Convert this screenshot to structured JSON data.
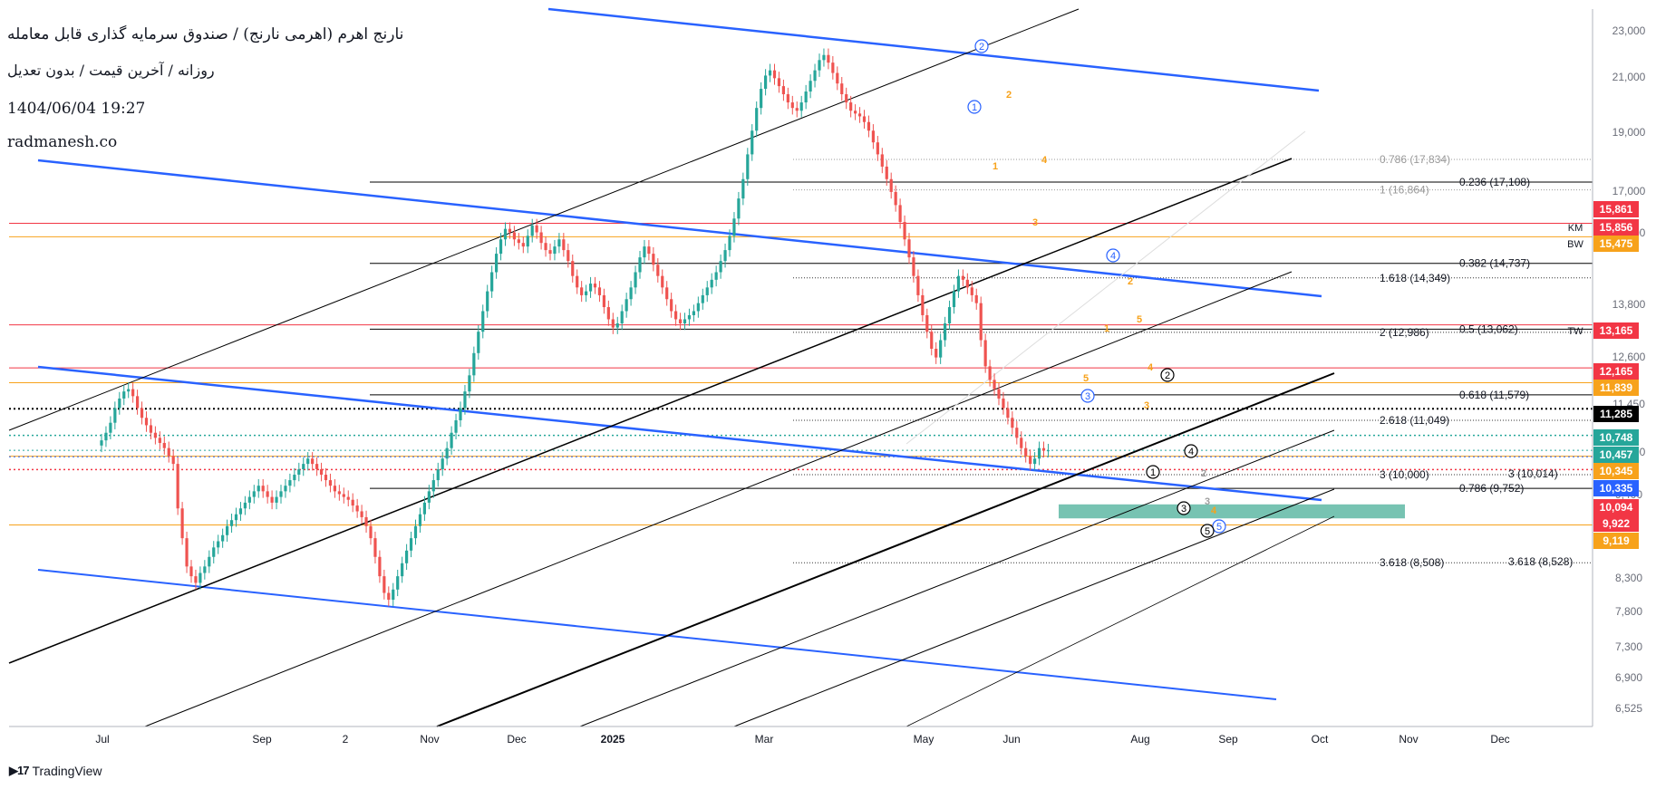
{
  "header": {
    "title": "نارنج اهرم (اهرمی نارنج) / صندوق سرمایه گذاری قابل معامله",
    "subtitle": "روزانه / آخرین قیمت / بدون تعدیل",
    "datetime": "1404/06/04 19:27",
    "website": "radmanesh.co"
  },
  "footer": {
    "brand": "TradingView"
  },
  "colors": {
    "up": "#26a69a",
    "down": "#ef5350",
    "blue": "#2962ff",
    "black": "#000000",
    "red_line": "#f23645",
    "orange_line": "#f7a21b",
    "teal_zone": "#5fb9a5"
  },
  "chart_data": {
    "type": "candlestick",
    "x_ticks": [
      "Jul",
      "Sep",
      "2",
      "Nov",
      "Dec",
      "2025",
      "Mar",
      "May",
      "Jun",
      "Aug",
      "Sep",
      "Oct",
      "Nov",
      "Dec"
    ],
    "y_ticks": [
      "23,000",
      "21,000",
      "19,000",
      "17,000",
      "15,000",
      "13,800",
      "12,600",
      "11,450",
      "10,400",
      "9,400",
      "8,300",
      "7,800",
      "7,300",
      "6,900",
      "6,525"
    ],
    "price_labels": [
      {
        "text": "15,861",
        "value": 15861,
        "color": "#f23645"
      },
      {
        "text": "15,856",
        "value": 15856,
        "color": "#f23645",
        "tag": "KM"
      },
      {
        "text": "15,475",
        "value": 15475,
        "color": "#f7a21b",
        "tag": "BW"
      },
      {
        "text": "13,165",
        "value": 13165,
        "color": "#f23645",
        "tag": "TW"
      },
      {
        "text": "12,165",
        "value": 12165,
        "color": "#f23645"
      },
      {
        "text": "11,839",
        "value": 11839,
        "color": "#f7a21b"
      },
      {
        "text": "11,285",
        "value": 11285,
        "color": "#000000"
      },
      {
        "text": "10,748",
        "value": 10748,
        "color": "#26a69a"
      },
      {
        "text": "10,457",
        "value": 10457,
        "color": "#26a69a"
      },
      {
        "text": "10,345",
        "value": 10345,
        "color": "#f7a21b"
      },
      {
        "text": "10,335",
        "value": 10335,
        "color": "#2962ff"
      },
      {
        "text": "10,094",
        "value": 10094,
        "color": "#f23645"
      },
      {
        "text": "9,922",
        "value": 9922,
        "color": "#f23645"
      },
      {
        "text": "9,119",
        "value": 9119,
        "color": "#f7a21b"
      }
    ],
    "fib_labels": [
      {
        "text": "0.786 (17,834)",
        "value": 17834,
        "muted": true
      },
      {
        "text": "0.236 (17,108)",
        "value": 17108
      },
      {
        "text": "1 (16,864)",
        "value": 16864,
        "muted": true
      },
      {
        "text": "0.382 (14,737)",
        "value": 14737
      },
      {
        "text": "1.618 (14,349)",
        "value": 14349
      },
      {
        "text": "0.5 (13,062)",
        "value": 13062
      },
      {
        "text": "2 (12,986)",
        "value": 12986
      },
      {
        "text": "0.618 (11,579)",
        "value": 11579
      },
      {
        "text": "2.618 (11,049)",
        "value": 11049
      },
      {
        "text": "3 (10,014)",
        "value": 10014
      },
      {
        "text": "3 (10,000)",
        "value": 10000
      },
      {
        "text": "0.786 (9,752)",
        "value": 9752
      },
      {
        "text": "3.618 (8,528)",
        "value": 8528
      },
      {
        "text": "3.618 (8,508)",
        "value": 8508
      }
    ],
    "wave_labels": [
      {
        "text": "2",
        "style": "blue-circle"
      },
      {
        "text": "1",
        "style": "blue-circle"
      },
      {
        "text": "4",
        "style": "blue-circle"
      },
      {
        "text": "3",
        "style": "blue-circle"
      },
      {
        "text": "5",
        "style": "blue-circle"
      },
      {
        "text": "2",
        "style": "black-circle"
      },
      {
        "text": "4",
        "style": "black-circle"
      },
      {
        "text": "1",
        "style": "black-circle"
      },
      {
        "text": "3",
        "style": "black-circle"
      },
      {
        "text": "5",
        "style": "black-circle"
      },
      {
        "text": "1",
        "style": "orange"
      },
      {
        "text": "2",
        "style": "orange"
      },
      {
        "text": "3",
        "style": "orange"
      },
      {
        "text": "4",
        "style": "orange"
      },
      {
        "text": "5",
        "style": "orange"
      },
      {
        "text": "1",
        "style": "orange"
      },
      {
        "text": "2",
        "style": "orange"
      },
      {
        "text": "3",
        "style": "orange"
      },
      {
        "text": "4",
        "style": "orange"
      },
      {
        "text": "5",
        "style": "orange"
      },
      {
        "text": "2",
        "style": "grey"
      },
      {
        "text": "3",
        "style": "grey"
      },
      {
        "text": "4",
        "style": "orange"
      }
    ],
    "candles": {
      "o": [
        10550,
        10650,
        10800,
        11000,
        11300,
        11500,
        11650,
        11700,
        11550,
        11300,
        11100,
        10950,
        10800,
        10700,
        10600,
        10500,
        10350,
        10200,
        9400,
        8900,
        8450,
        8300,
        8200,
        8350,
        8450,
        8600,
        8750,
        8850,
        8950,
        9100,
        9200,
        9300,
        9400,
        9500,
        9600,
        9700,
        9800,
        9700,
        9600,
        9500,
        9600,
        9700,
        9800,
        9900,
        10000,
        10100,
        10200,
        10300,
        10200,
        10100,
        10000,
        9900,
        9800,
        9700,
        9650,
        9600,
        9550,
        9450,
        9350,
        9250,
        9100,
        8900,
        8600,
        8300,
        8050,
        7950,
        8100,
        8300,
        8500,
        8700,
        8900,
        9100,
        9300,
        9500,
        9700,
        9900,
        10100,
        10300,
        10500,
        10800,
        11050,
        11300,
        11650,
        12000,
        12500,
        13000,
        13500,
        14000,
        14500,
        15000,
        15400,
        15700,
        15600,
        15400,
        15300,
        15200,
        15500,
        15800,
        15600,
        15300,
        15100,
        15000,
        15200,
        15400,
        15100,
        14800,
        14400,
        14100,
        13900,
        14000,
        14200,
        14100,
        13900,
        13600,
        13300,
        13100,
        13200,
        13500,
        13800,
        14100,
        14500,
        14900,
        15200,
        15000,
        14700,
        14400,
        14100,
        13800,
        13500,
        13300,
        13200,
        13300,
        13400,
        13500,
        13700,
        13900,
        14100,
        14300,
        14500,
        14800,
        15100,
        15500,
        16000,
        16600,
        17200,
        18000,
        18800,
        19600,
        20300,
        20800,
        21000,
        20700,
        20400,
        20100,
        19800,
        19600,
        19500,
        19800,
        20200,
        20600,
        21000,
        21400,
        21600,
        21300,
        20900,
        20500,
        20100,
        19800,
        19500,
        19400,
        19300,
        19100,
        18800,
        18400,
        18000,
        17600,
        17200,
        16800,
        16400,
        15900,
        15400,
        14900,
        14400,
        13900,
        13400,
        13000,
        12600,
        12400,
        12800,
        13200,
        13600,
        14000,
        14400,
        14300,
        14100,
        13900,
        13700,
        12800,
        12200,
        11900,
        11700,
        11500,
        11300,
        11100,
        10900,
        10700,
        10500,
        10350,
        10200,
        10300,
        10500,
        10450
      ],
      "c": [
        10650,
        10800,
        11000,
        11300,
        11500,
        11650,
        11700,
        11550,
        11300,
        11100,
        10950,
        10800,
        10700,
        10600,
        10500,
        10350,
        10200,
        9400,
        8900,
        8450,
        8300,
        8200,
        8350,
        8450,
        8600,
        8750,
        8850,
        8950,
        9100,
        9200,
        9300,
        9400,
        9500,
        9600,
        9700,
        9800,
        9700,
        9600,
        9500,
        9600,
        9700,
        9800,
        9900,
        10000,
        10100,
        10200,
        10300,
        10200,
        10100,
        10000,
        9900,
        9800,
        9700,
        9650,
        9600,
        9550,
        9450,
        9350,
        9250,
        9100,
        8900,
        8600,
        8300,
        8050,
        7950,
        8100,
        8300,
        8500,
        8700,
        8900,
        9100,
        9300,
        9500,
        9700,
        9900,
        10100,
        10300,
        10500,
        10800,
        11050,
        11300,
        11650,
        12000,
        12500,
        13000,
        13500,
        14000,
        14500,
        15000,
        15400,
        15700,
        15600,
        15400,
        15300,
        15200,
        15500,
        15800,
        15600,
        15300,
        15100,
        15000,
        15200,
        15400,
        15100,
        14800,
        14400,
        14100,
        13900,
        14000,
        14200,
        14100,
        13900,
        13600,
        13300,
        13100,
        13200,
        13500,
        13800,
        14100,
        14500,
        14900,
        15200,
        15000,
        14700,
        14400,
        14100,
        13800,
        13500,
        13300,
        13200,
        13300,
        13400,
        13500,
        13700,
        13900,
        14100,
        14300,
        14500,
        14800,
        15100,
        15500,
        16000,
        16600,
        17200,
        18000,
        18800,
        19600,
        20300,
        20800,
        21000,
        20700,
        20400,
        20100,
        19800,
        19600,
        19500,
        19800,
        20200,
        20600,
        21000,
        21400,
        21600,
        21300,
        20900,
        20500,
        20100,
        19800,
        19500,
        19400,
        19300,
        19100,
        18800,
        18400,
        18000,
        17600,
        17200,
        16800,
        16400,
        15900,
        15400,
        14900,
        14400,
        13900,
        13400,
        13000,
        12600,
        12400,
        12800,
        13200,
        13600,
        14000,
        14400,
        14300,
        14100,
        13900,
        13700,
        12800,
        12200,
        11900,
        11700,
        11500,
        11300,
        11100,
        10900,
        10700,
        10500,
        10350,
        10200,
        10300,
        10500,
        10450,
        10457
      ]
    }
  }
}
